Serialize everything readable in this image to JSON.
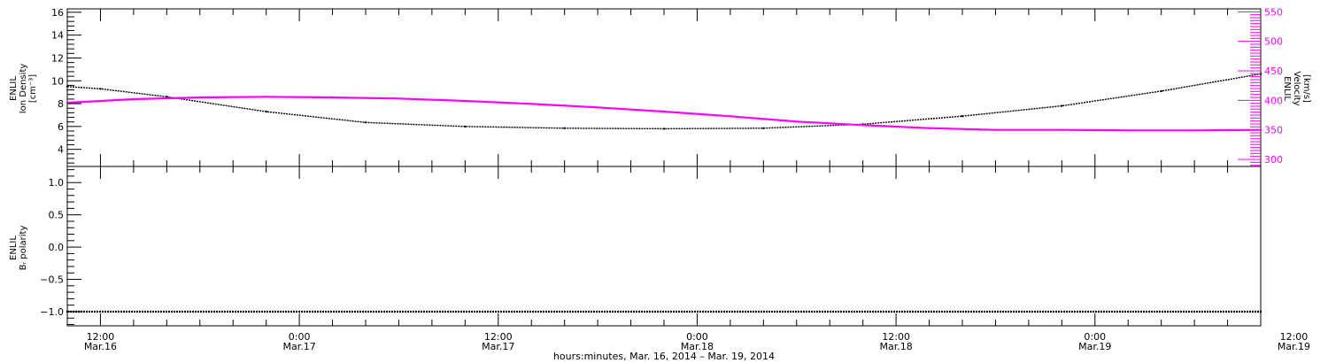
{
  "colors": {
    "density": "#000000",
    "velocity": "#ff00ff",
    "polarity": "#000000",
    "frame": "#000000"
  },
  "chart_data": [
    {
      "type": "line",
      "panel": "top",
      "x_range_hours": [
        8,
        80
      ],
      "grid": false,
      "series": [
        {
          "axis": "left",
          "label_lines": [
            "ENLIL",
            "Ion Density"
          ],
          "unit": "[cm⁻³]",
          "ylim": [
            2.5,
            16.3
          ],
          "ticks": [
            4,
            6,
            8,
            10,
            12,
            14,
            16
          ],
          "tick_labels": [
            "4",
            "6",
            "8",
            "10",
            "12",
            "14",
            "16"
          ],
          "x": [
            8,
            10,
            14,
            20,
            26,
            32,
            38,
            44,
            50,
            56,
            62,
            68,
            74,
            80
          ],
          "y": [
            9.5,
            9.3,
            8.6,
            7.3,
            6.35,
            6.0,
            5.85,
            5.8,
            5.85,
            6.2,
            6.9,
            7.8,
            9.1,
            10.6
          ]
        },
        {
          "axis": "right",
          "label_lines": [
            "ENLIL",
            "Velocity"
          ],
          "unit": "[km/s]",
          "ylim": [
            288,
            555
          ],
          "ticks": [
            300,
            350,
            400,
            450,
            500,
            550
          ],
          "tick_labels": [
            "300",
            "350",
            "400",
            "450",
            "500",
            "550"
          ],
          "x": [
            8,
            12,
            16,
            20,
            24,
            28,
            32,
            36,
            40,
            44,
            48,
            52,
            56,
            60,
            64,
            68,
            72,
            76,
            80
          ],
          "y": [
            396,
            402,
            405,
            406,
            405,
            403,
            399,
            394,
            388,
            381,
            373,
            364,
            358,
            353,
            350,
            350,
            349,
            349,
            350
          ]
        }
      ]
    },
    {
      "type": "line",
      "panel": "bottom",
      "x_range_hours": [
        8,
        80
      ],
      "grid": false,
      "series": [
        {
          "axis": "left",
          "label_lines": [
            "ENLIL",
            "Bᵣ polarity"
          ],
          "ylim": [
            -1.22,
            1.25
          ],
          "ticks": [
            -1.0,
            -0.5,
            0.0,
            0.5,
            1.0
          ],
          "tick_labels": [
            "−1.0",
            "−0.5",
            "0.0",
            "0.5",
            "1.0"
          ],
          "x": [
            8,
            80
          ],
          "y": [
            -1,
            -1
          ]
        }
      ]
    }
  ],
  "x_axis": {
    "major_ticks": [
      {
        "hour": 10,
        "time": "12:00",
        "date": "Mar.16"
      },
      {
        "hour": 22,
        "time": "0:00",
        "date": "Mar.17"
      },
      {
        "hour": 34,
        "time": "12:00",
        "date": "Mar.17"
      },
      {
        "hour": 46,
        "time": "0:00",
        "date": "Mar.18"
      },
      {
        "hour": 58,
        "time": "12:00",
        "date": "Mar.18"
      },
      {
        "hour": 70,
        "time": "0:00",
        "date": "Mar.19"
      },
      {
        "hour": 82,
        "time": "12:00",
        "date": "Mar.19"
      }
    ],
    "title": "hours:minutes, Mar. 16, 2014 – Mar. 19, 2014"
  }
}
